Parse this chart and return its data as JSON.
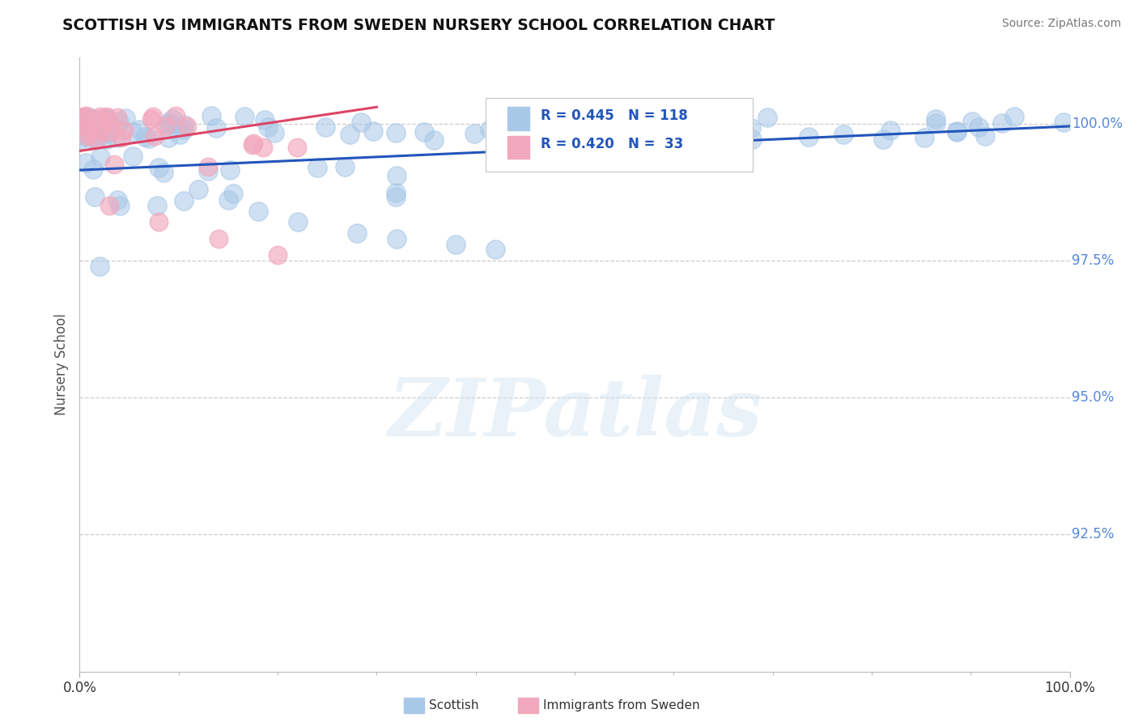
{
  "title": "SCOTTISH VS IMMIGRANTS FROM SWEDEN NURSERY SCHOOL CORRELATION CHART",
  "source": "Source: ZipAtlas.com",
  "ylabel": "Nursery School",
  "xlim": [
    0.0,
    100.0
  ],
  "ylim": [
    90.0,
    101.2
  ],
  "ytick_vals": [
    92.5,
    95.0,
    97.5,
    100.0
  ],
  "ytick_labels": [
    "92.5%",
    "95.0%",
    "97.5%",
    "100.0%"
  ],
  "xtick_vals": [
    0,
    100
  ],
  "xtick_labels": [
    "0.0%",
    "100.0%"
  ],
  "blue_R": 0.445,
  "blue_N": 118,
  "pink_R": 0.42,
  "pink_N": 33,
  "blue_color": "#a8c8e8",
  "pink_color": "#f2a8bc",
  "blue_line_color": "#2255bb",
  "pink_line_color": "#dd4466",
  "legend_label_blue": "Scottish",
  "legend_label_pink": "Immigrants from Sweden",
  "watermark": "ZIPatlas",
  "background_color": "#ffffff",
  "seed": 42,
  "blue_line_x0": 0,
  "blue_line_y0": 99.15,
  "blue_line_x1": 100,
  "blue_line_y1": 99.95,
  "pink_line_x0": 0,
  "pink_line_y0": 99.5,
  "pink_line_x1": 30,
  "pink_line_y1": 100.3
}
